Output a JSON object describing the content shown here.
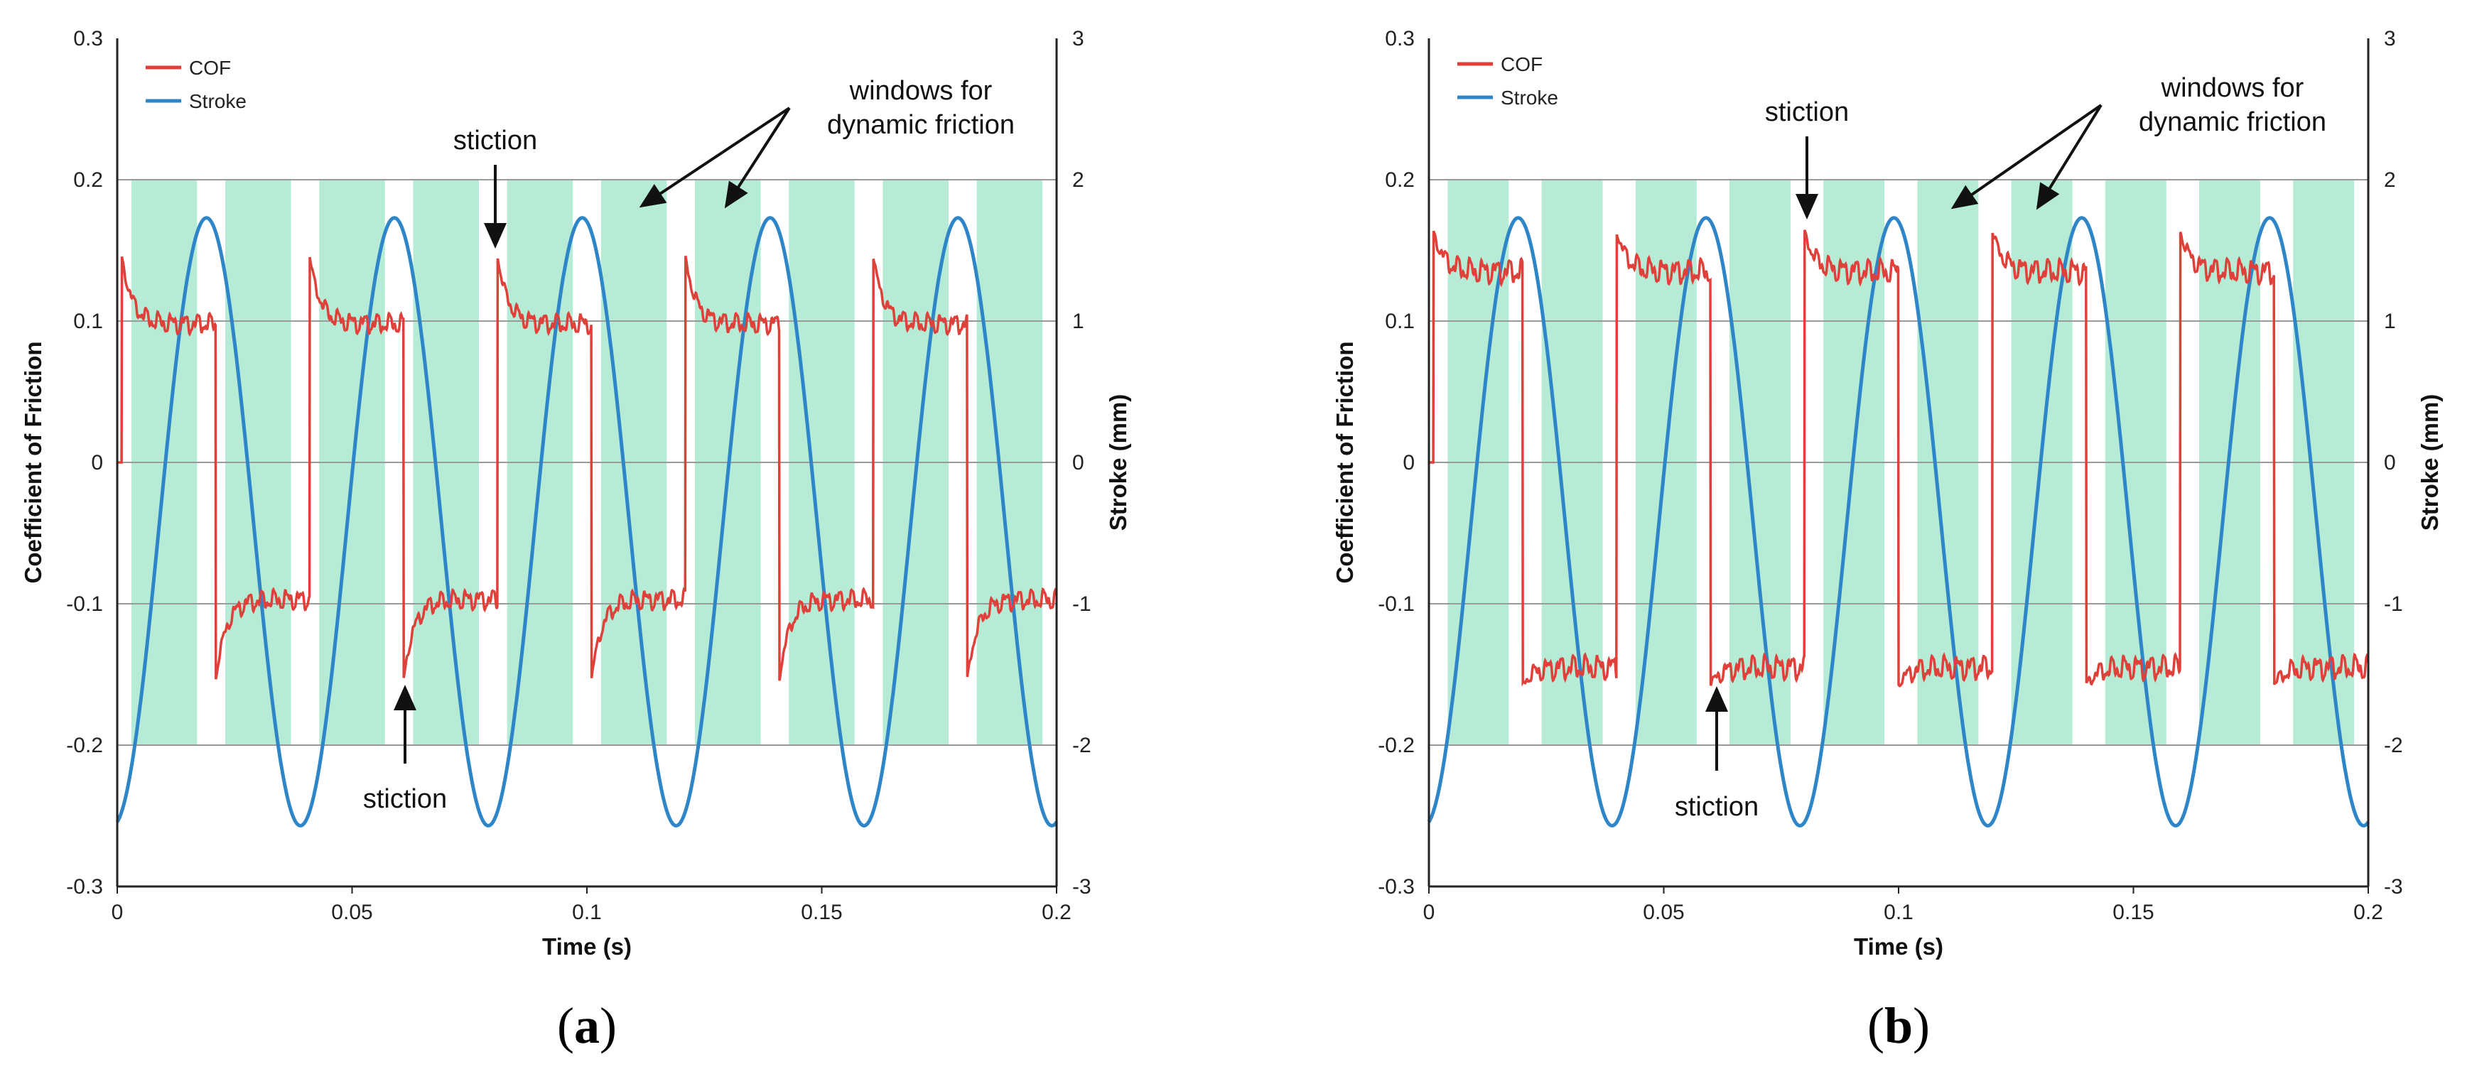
{
  "chart_data": [
    {
      "type": "line",
      "panel": "a",
      "caption_open": "(",
      "caption_letter": "a",
      "caption_close": ")",
      "xlabel": "Time (s)",
      "ylabel": "Coefficient of Friction",
      "y2label": "Stroke (mm)",
      "xlim": [
        0,
        0.2
      ],
      "ylim": [
        -0.3,
        0.3
      ],
      "y2lim": [
        -3,
        3
      ],
      "x_ticks": [
        "0",
        "0.05",
        "0.1",
        "0.15",
        "0.2"
      ],
      "y_ticks": [
        "-0.3",
        "-0.2",
        "-0.1",
        "0",
        "0.1",
        "0.2",
        "0.3"
      ],
      "y2_ticks": [
        "-3",
        "-2",
        "-1",
        "0",
        "1",
        "2",
        "3"
      ],
      "grid": "horizontal",
      "legend": [
        {
          "name": "COF",
          "color": "#e0403a"
        },
        {
          "name": "Stroke",
          "color": "#2e86c8"
        }
      ],
      "legend_position": "top-left",
      "cof": {
        "name": "COF",
        "color": "#e0403a",
        "pos_stiction": 0.145,
        "pos_level": 0.098,
        "neg_stiction": -0.153,
        "neg_level": -0.097,
        "transitions": [
          0.001,
          0.021,
          0.041,
          0.061,
          0.081,
          0.101,
          0.121,
          0.141,
          0.161,
          0.181
        ],
        "ripple": 0.009
      },
      "stroke": {
        "name": "Stroke",
        "color": "#2e86c8",
        "amplitude_mm": 2.15,
        "offset_mm": -0.42,
        "period_s": 0.04,
        "first_peak_s": 0.019
      },
      "windows": {
        "color": "#b6ecd6",
        "y_range": [
          -0.2,
          0.2
        ],
        "intervals": [
          [
            0.003,
            0.017
          ],
          [
            0.023,
            0.037
          ],
          [
            0.043,
            0.057
          ],
          [
            0.063,
            0.077
          ],
          [
            0.083,
            0.097
          ],
          [
            0.103,
            0.117
          ],
          [
            0.123,
            0.137
          ],
          [
            0.143,
            0.157
          ],
          [
            0.163,
            0.177
          ],
          [
            0.183,
            0.197
          ]
        ]
      },
      "annotations": [
        {
          "text": "stiction",
          "x": 0.08,
          "y": 0.228,
          "arrow_to": [
            0.08,
            0.152
          ],
          "arrow_from": [
            0.08,
            0.212
          ]
        },
        {
          "text": "stiction",
          "x": 0.061,
          "y": -0.244,
          "arrow_to": [
            0.061,
            -0.16
          ],
          "arrow_from": [
            0.061,
            -0.215
          ]
        },
        {
          "text_lines": [
            "windows for",
            "dynamic friction"
          ],
          "x": 0.171,
          "y": 0.252,
          "arrows_to": [
            [
              0.111,
              0.18
            ],
            [
              0.13,
              0.18
            ]
          ],
          "arrow_from": [
            0.142,
            0.248
          ]
        }
      ]
    },
    {
      "type": "line",
      "panel": "b",
      "caption_open": "(",
      "caption_letter": "b",
      "caption_close": ")",
      "xlabel": "Time (s)",
      "ylabel": "Coefficient of Friction",
      "y2label": "Stroke (mm)",
      "xlim": [
        0,
        0.2
      ],
      "ylim": [
        -0.3,
        0.3
      ],
      "y2lim": [
        -3,
        3
      ],
      "x_ticks": [
        "0",
        "0.05",
        "0.1",
        "0.15",
        "0.2"
      ],
      "y_ticks": [
        "-0.3",
        "-0.2",
        "-0.1",
        "0",
        "0.1",
        "0.2",
        "0.3"
      ],
      "y2_ticks": [
        "-3",
        "-2",
        "-1",
        "0",
        "1",
        "2",
        "3"
      ],
      "grid": "horizontal",
      "legend": [
        {
          "name": "COF",
          "color": "#e0403a"
        },
        {
          "name": "Stroke",
          "color": "#2e86c8"
        }
      ],
      "legend_position": "top-left",
      "cof": {
        "name": "COF",
        "color": "#e0403a",
        "pos_stiction": 0.163,
        "pos_level": 0.135,
        "neg_stiction": -0.157,
        "neg_level": -0.145,
        "transitions": [
          0.001,
          0.02,
          0.04,
          0.06,
          0.08,
          0.1,
          0.12,
          0.14,
          0.16,
          0.18
        ],
        "ripple": 0.011
      },
      "stroke": {
        "name": "Stroke",
        "color": "#2e86c8",
        "amplitude_mm": 2.15,
        "offset_mm": -0.42,
        "period_s": 0.04,
        "first_peak_s": 0.019
      },
      "windows": {
        "color": "#b6ecd6",
        "y_range": [
          -0.2,
          0.2
        ],
        "intervals": [
          [
            0.004,
            0.017
          ],
          [
            0.024,
            0.037
          ],
          [
            0.044,
            0.057
          ],
          [
            0.064,
            0.077
          ],
          [
            0.084,
            0.097
          ],
          [
            0.104,
            0.117
          ],
          [
            0.124,
            0.137
          ],
          [
            0.144,
            0.157
          ],
          [
            0.164,
            0.177
          ],
          [
            0.184,
            0.197
          ]
        ]
      },
      "annotations": [
        {
          "text": "stiction",
          "x": 0.081,
          "y": 0.248,
          "arrow_to": [
            0.081,
            0.172
          ],
          "arrow_from": [
            0.081,
            0.232
          ]
        },
        {
          "text": "stiction",
          "x": 0.061,
          "y": -0.246,
          "arrow_to": [
            0.061,
            -0.161
          ],
          "arrow_from": [
            0.061,
            -0.216
          ]
        },
        {
          "text_lines": [
            "windows for",
            "dynamic friction"
          ],
          "x": 0.171,
          "y": 0.25,
          "arrows_to": [
            [
              0.111,
              0.18
            ],
            [
              0.13,
              0.18
            ]
          ],
          "arrow_from": [
            0.142,
            0.246
          ]
        }
      ]
    }
  ]
}
